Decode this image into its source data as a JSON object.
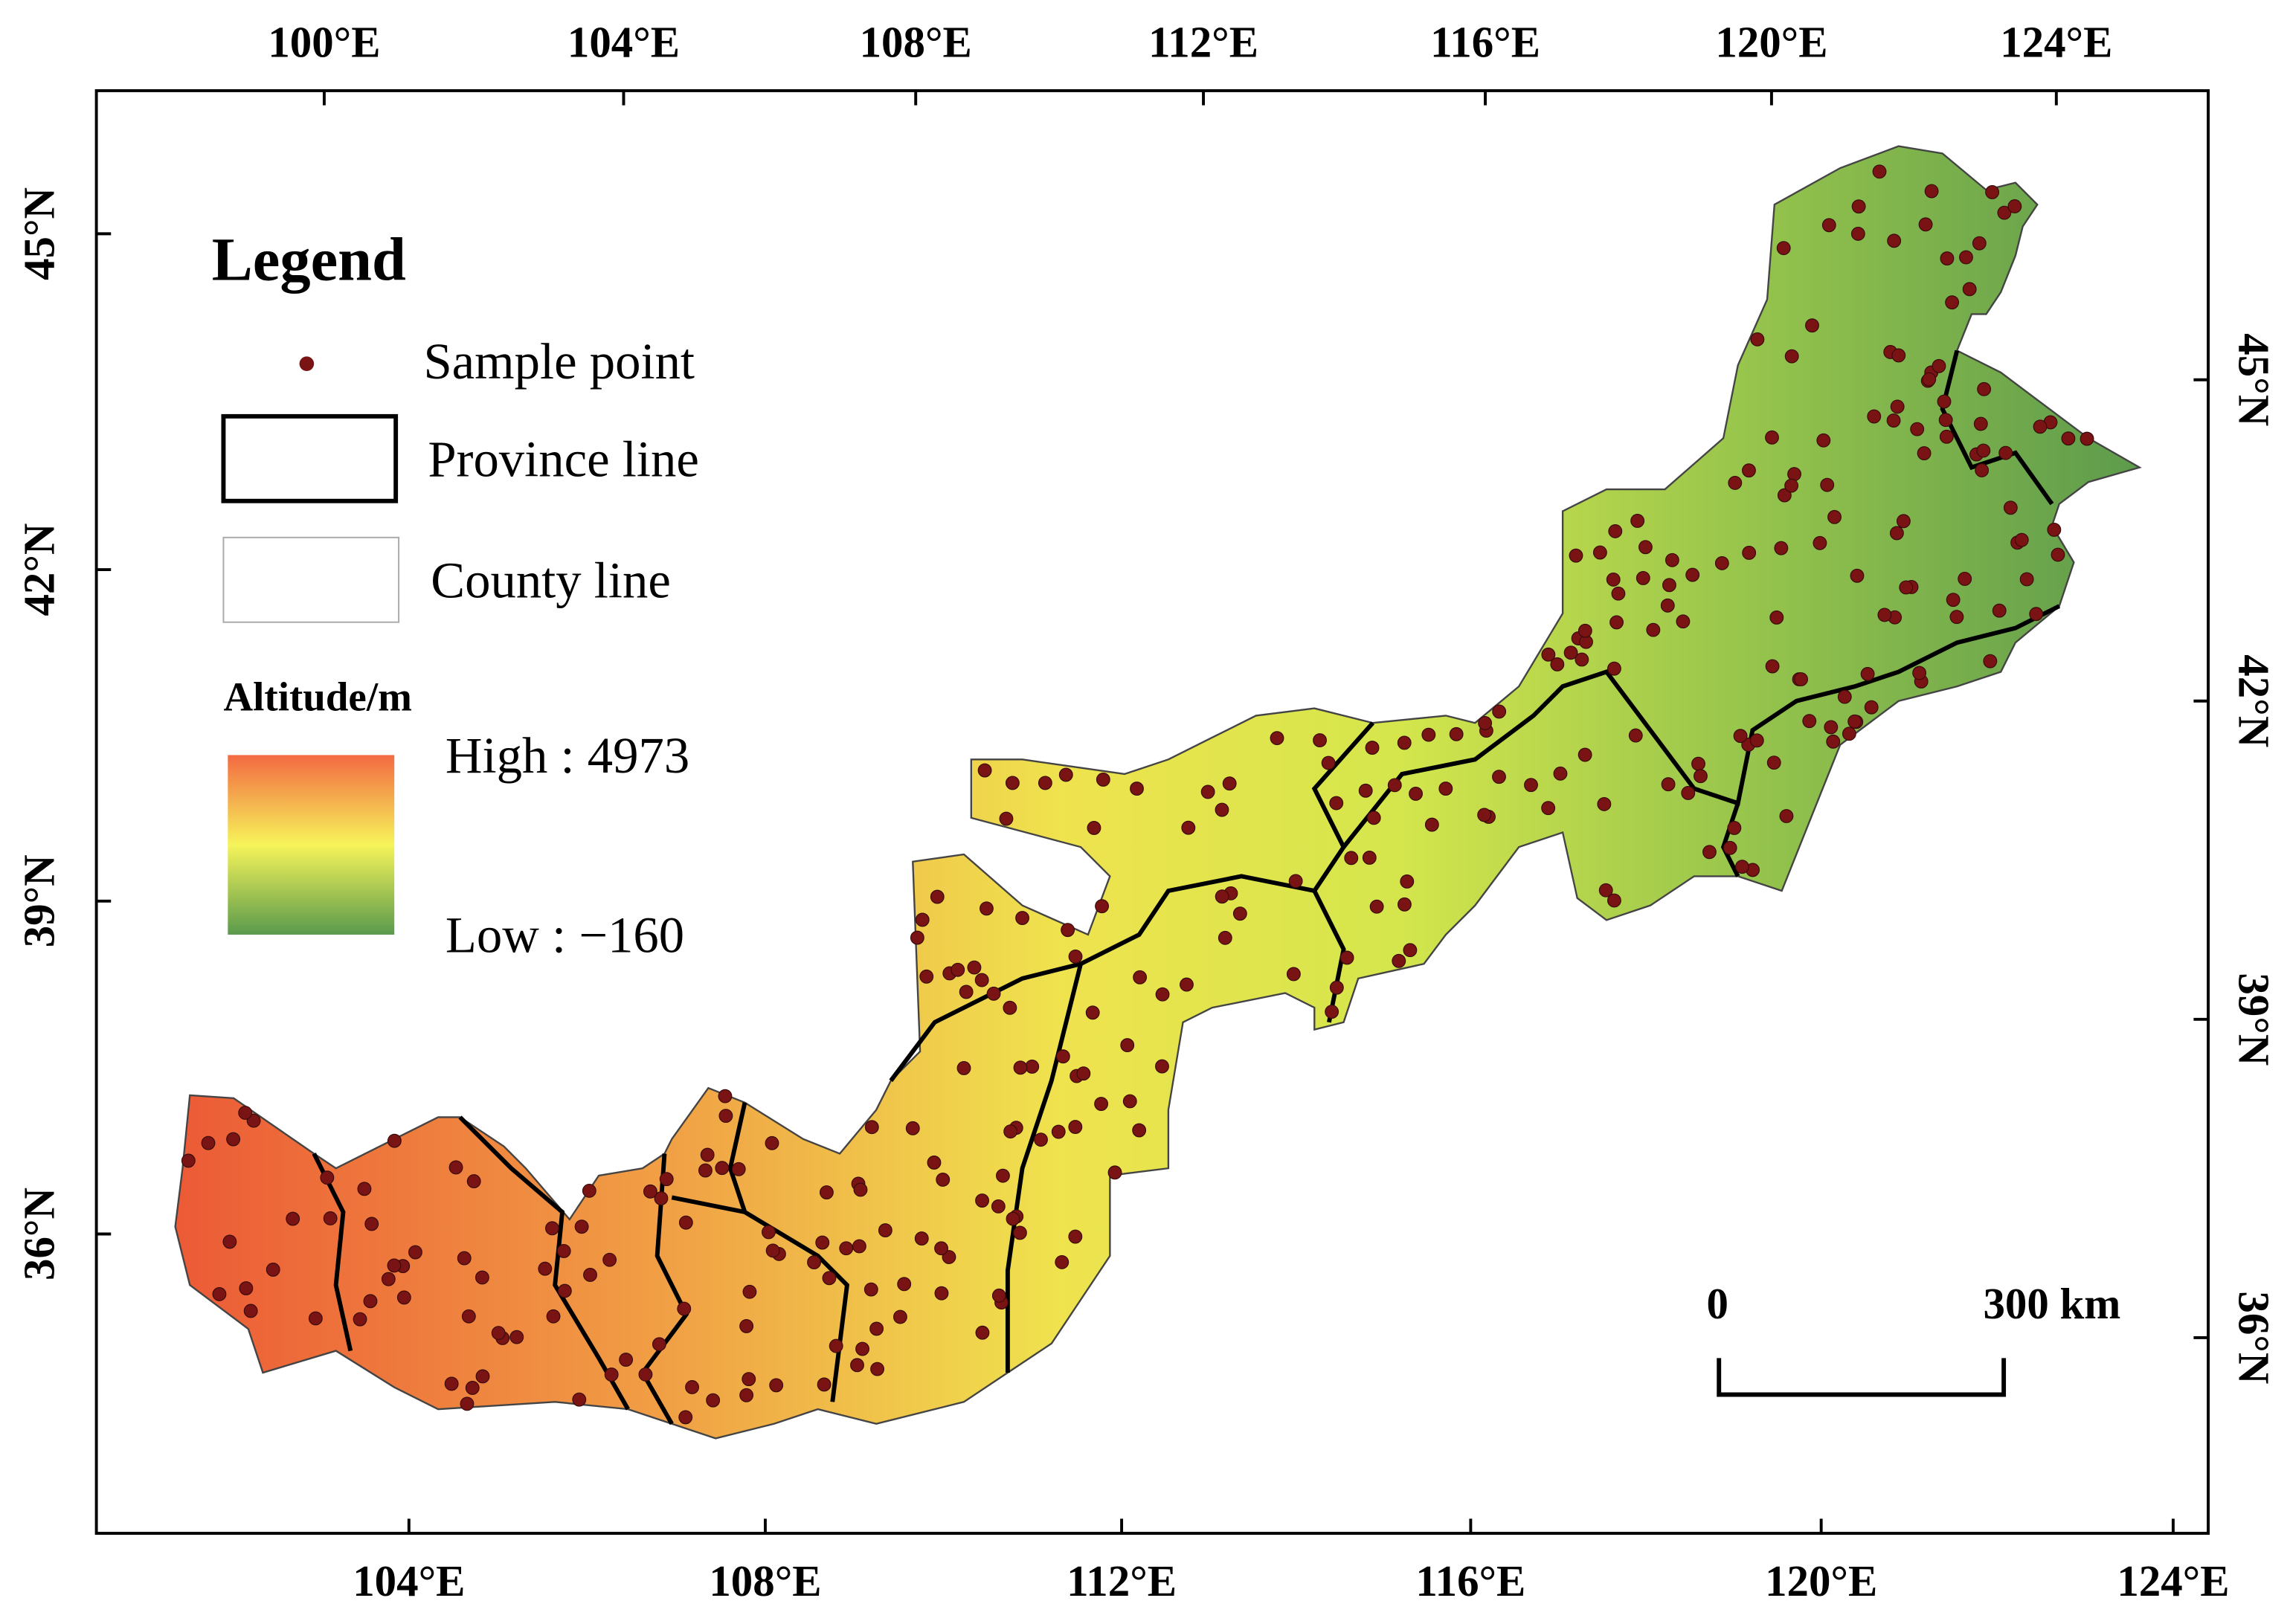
{
  "axes": {
    "top": [
      "100°E",
      "104°E",
      "108°E",
      "112°E",
      "116°E",
      "120°E",
      "124°E"
    ],
    "bottom": [
      "104°E",
      "108°E",
      "112°E",
      "116°E",
      "120°E",
      "124°E"
    ],
    "left": [
      "45°N",
      "42°N",
      "39°N",
      "36°N"
    ],
    "right": [
      "45°N",
      "42°N",
      "39°N",
      "36°N"
    ]
  },
  "legend": {
    "title": "Legend",
    "items": [
      "Sample point",
      "Province line",
      "County line"
    ],
    "ramp_title": "Altitude/m",
    "high": "High : 4973",
    "low": "Low : −160"
  },
  "scale_bar": {
    "start": "0",
    "end": "300 km"
  }
}
